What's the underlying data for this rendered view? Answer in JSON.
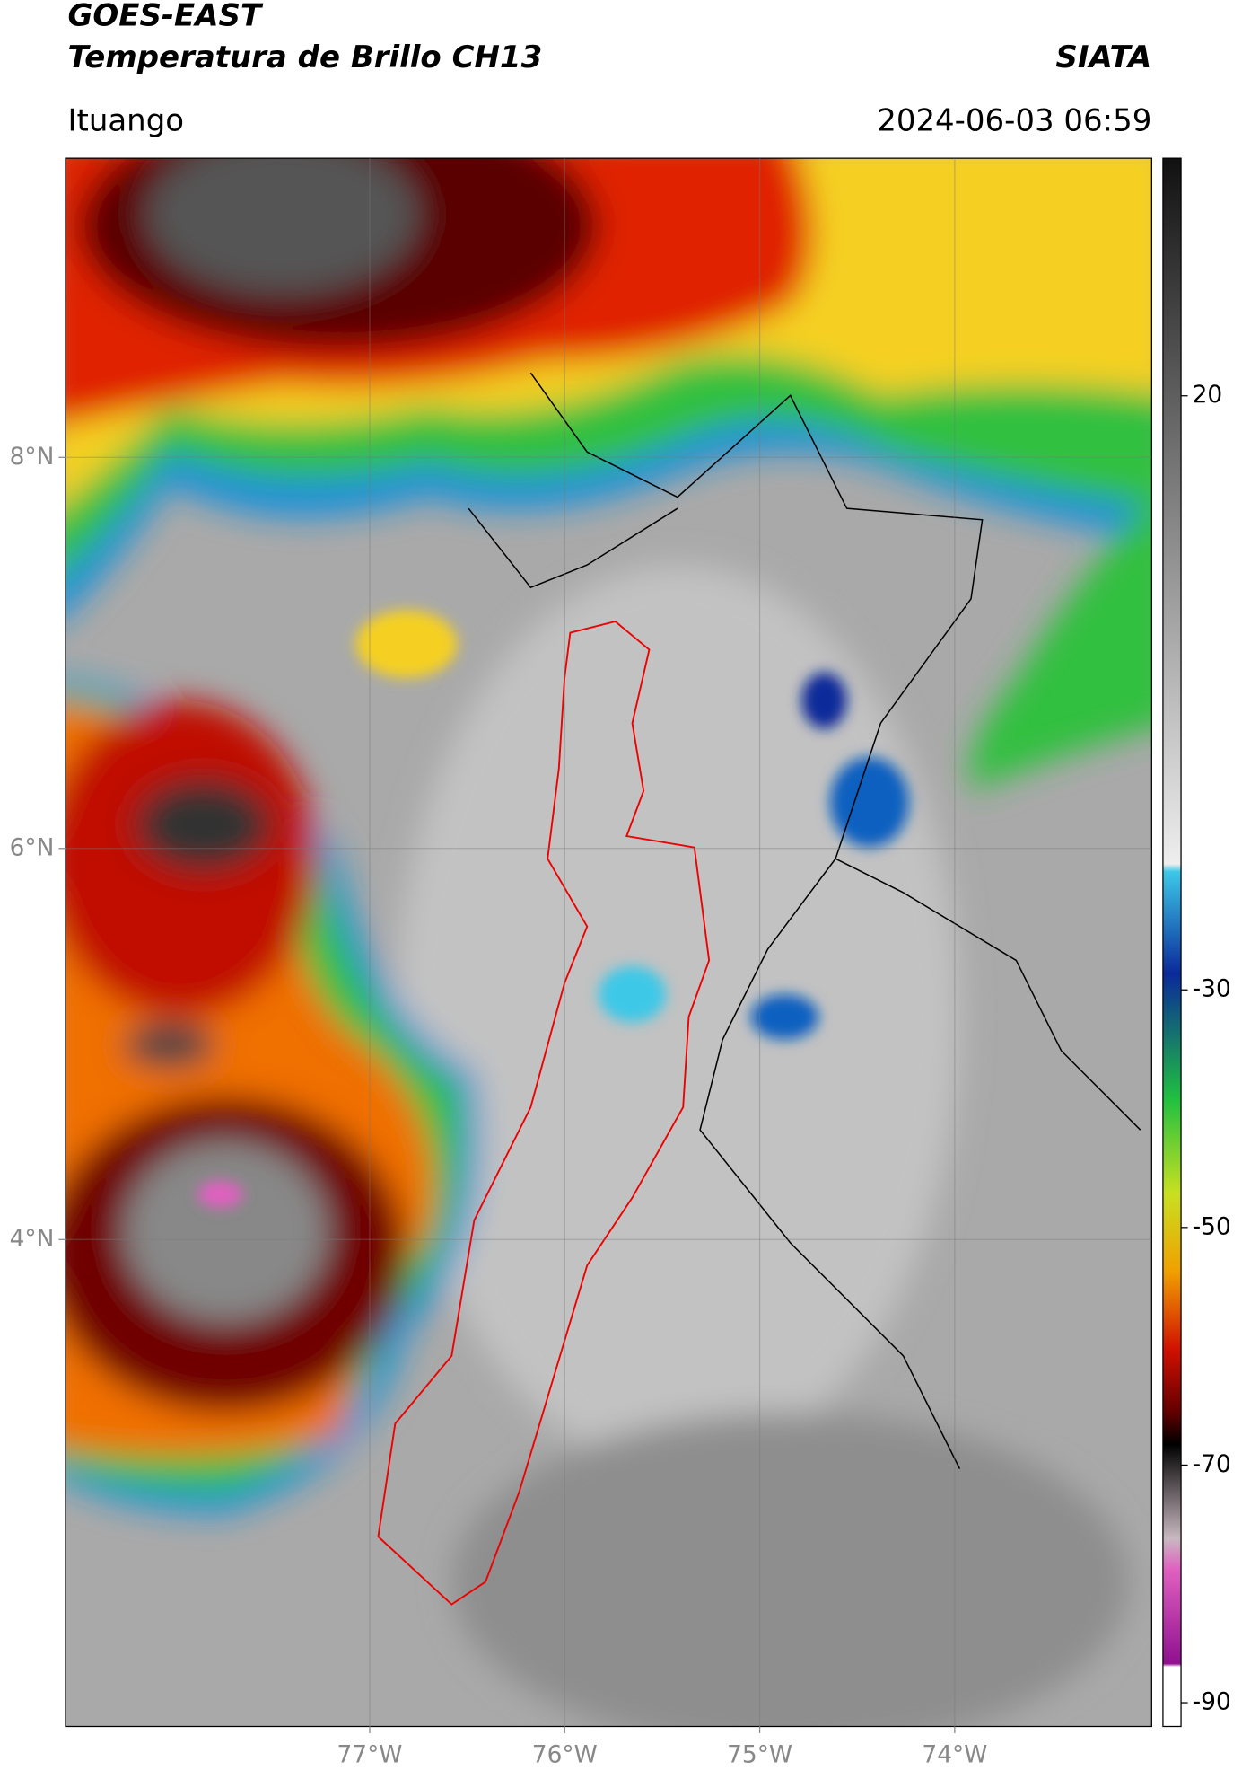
{
  "header": {
    "title": "GOES-EAST",
    "subtitle": "Temperatura de Brillo CH13",
    "agency": "SIATA",
    "location": "Ituango",
    "datetime": "2024-06-03 06:59"
  },
  "map": {
    "xlim": [
      -78.56,
      -72.99
    ],
    "ylim": [
      1.51,
      9.53
    ],
    "xticks": [
      {
        "value": -77,
        "label": "77°W"
      },
      {
        "value": -76,
        "label": "76°W"
      },
      {
        "value": -75,
        "label": "75°W"
      },
      {
        "value": -74,
        "label": "74°W"
      }
    ],
    "yticks": [
      {
        "value": 8,
        "label": "8°N"
      },
      {
        "value": 6,
        "label": "6°N"
      },
      {
        "value": 4,
        "label": "4°N"
      }
    ],
    "grid": true
  },
  "colorbar": {
    "lim": [
      -92,
      40
    ],
    "ticks": [
      20,
      -30,
      -50,
      -70,
      -90
    ]
  }
}
